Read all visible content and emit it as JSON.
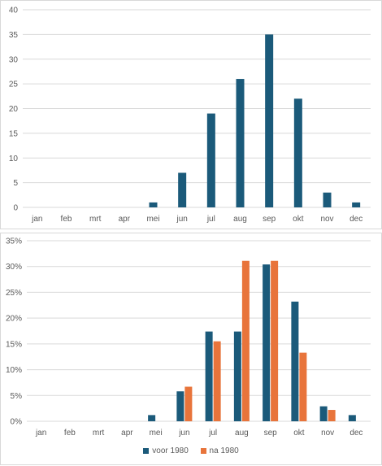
{
  "chart_data": [
    {
      "type": "bar",
      "categories": [
        "jan",
        "feb",
        "mrt",
        "apr",
        "mei",
        "jun",
        "jul",
        "aug",
        "sep",
        "okt",
        "nov",
        "dec"
      ],
      "series": [
        {
          "values": [
            0,
            0,
            0,
            0,
            1,
            7,
            19,
            26,
            35,
            22,
            3,
            1
          ],
          "color": "#1b5a7a"
        }
      ],
      "ylim": [
        0,
        40
      ],
      "yticks": [
        "0",
        "5",
        "10",
        "15",
        "20",
        "25",
        "30",
        "35",
        "40"
      ],
      "grid": true,
      "title": "",
      "xlabel": "",
      "ylabel": ""
    },
    {
      "type": "bar",
      "categories": [
        "jan",
        "feb",
        "mrt",
        "apr",
        "mei",
        "jun",
        "jul",
        "aug",
        "sep",
        "okt",
        "nov",
        "dec"
      ],
      "series": [
        {
          "name": "voor 1980",
          "values": [
            0,
            0,
            0,
            0,
            1.2,
            5.8,
            17.4,
            17.4,
            30.4,
            23.2,
            2.9,
            1.2
          ],
          "color": "#1b5a7a"
        },
        {
          "name": "na 1980",
          "values": [
            0,
            0,
            0,
            0,
            0,
            6.7,
            15.5,
            31.1,
            31.1,
            13.3,
            2.2,
            0
          ],
          "color": "#e8743b"
        }
      ],
      "ylim": [
        0,
        35
      ],
      "yticks": [
        "0%",
        "5%",
        "10%",
        "15%",
        "20%",
        "25%",
        "30%",
        "35%"
      ],
      "grid": true,
      "legend": "bottom",
      "title": "",
      "xlabel": "",
      "ylabel": ""
    }
  ]
}
